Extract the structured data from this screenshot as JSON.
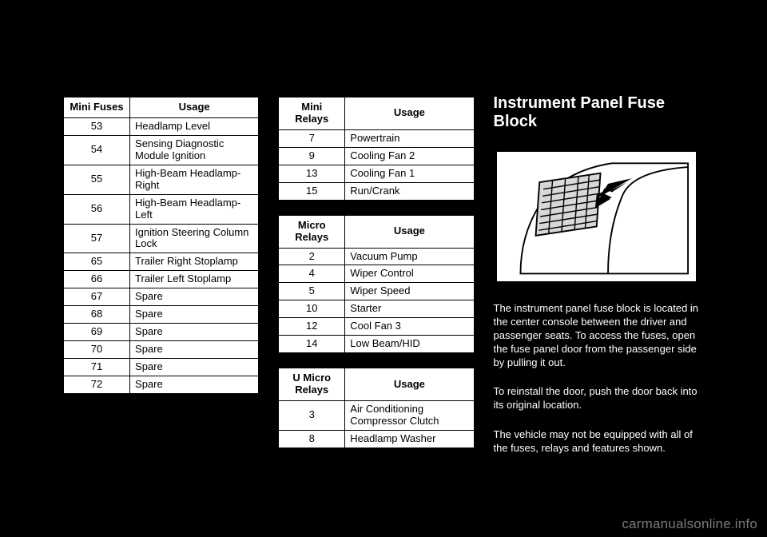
{
  "tables": {
    "mini_fuses": {
      "headers": [
        "Mini Fuses",
        "Usage"
      ],
      "rows": [
        [
          "53",
          "Headlamp Level"
        ],
        [
          "54",
          "Sensing Diagnostic Module Ignition"
        ],
        [
          "55",
          "High-Beam Headlamp-Right"
        ],
        [
          "56",
          "High-Beam Headlamp-Left"
        ],
        [
          "57",
          "Ignition Steering Column Lock"
        ],
        [
          "65",
          "Trailer Right Stoplamp"
        ],
        [
          "66",
          "Trailer Left Stoplamp"
        ],
        [
          "67",
          "Spare"
        ],
        [
          "68",
          "Spare"
        ],
        [
          "69",
          "Spare"
        ],
        [
          "70",
          "Spare"
        ],
        [
          "71",
          "Spare"
        ],
        [
          "72",
          "Spare"
        ]
      ]
    },
    "mini_relays": {
      "headers": [
        "Mini Relays",
        "Usage"
      ],
      "rows": [
        [
          "7",
          "Powertrain"
        ],
        [
          "9",
          "Cooling Fan 2"
        ],
        [
          "13",
          "Cooling Fan 1"
        ],
        [
          "15",
          "Run/Crank"
        ]
      ]
    },
    "micro_relays": {
      "headers": [
        "Micro Relays",
        "Usage"
      ],
      "rows": [
        [
          "2",
          "Vacuum Pump"
        ],
        [
          "4",
          "Wiper Control"
        ],
        [
          "5",
          "Wiper Speed"
        ],
        [
          "10",
          "Starter"
        ],
        [
          "12",
          "Cool Fan 3"
        ],
        [
          "14",
          "Low Beam/HID"
        ]
      ]
    },
    "u_micro_relays": {
      "headers": [
        "U Micro Relays",
        "Usage"
      ],
      "rows": [
        [
          "3",
          "Air Conditioning Compressor Clutch"
        ],
        [
          "8",
          "Headlamp Washer"
        ]
      ]
    }
  },
  "section": {
    "title": "Instrument Panel Fuse Block",
    "paragraphs": [
      "The instrument panel fuse block is located in the center console between the driver and passenger seats. To access the fuses, open the fuse panel door from the passenger side by pulling it out.",
      "To reinstall the door, push the door back into its original location.",
      "The vehicle may not be equipped with all of the fuses, relays and features shown."
    ]
  },
  "watermark": "carmanualsonline.info",
  "figure": {
    "panel_fill": "#d8d8d8",
    "panel_stroke": "#000000",
    "arrow_fill": "#000000",
    "grille_stroke": "#000000",
    "bg": "#ffffff"
  }
}
